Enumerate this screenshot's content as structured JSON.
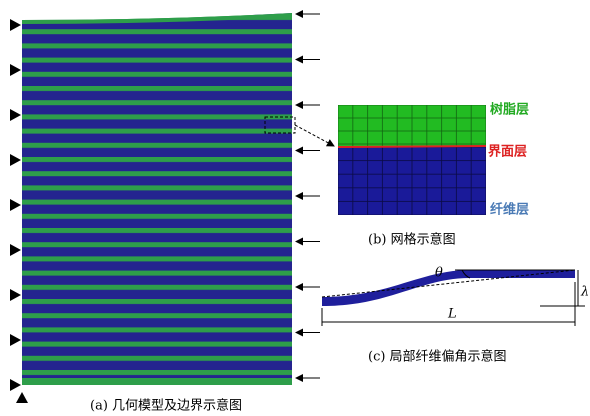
{
  "panel_a": {
    "caption": "(a) 几何模型及边界示意图"
  },
  "panel_b": {
    "caption": "(b) 网格示意图",
    "labels": [
      "树脂层",
      "界面层",
      "纤维层"
    ]
  },
  "panel_c": {
    "caption": "(c) 局部纤维偏角示意图",
    "theta": "θ",
    "lambda": "λ",
    "length": "L"
  }
}
